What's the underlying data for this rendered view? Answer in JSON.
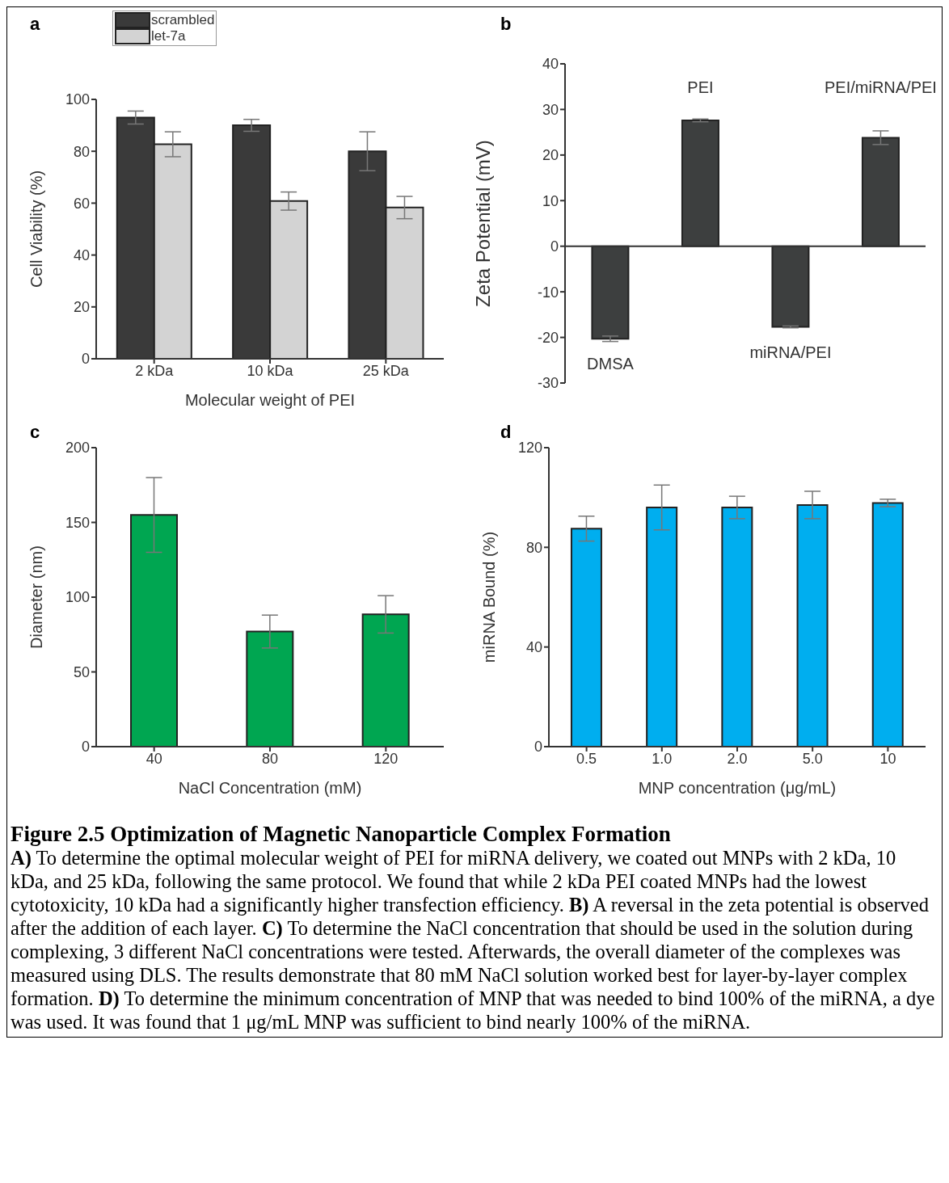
{
  "chart_data": [
    {
      "type": "bar",
      "title": "a",
      "categories": [
        "2 kDa",
        "10 kDa",
        "25 kDa"
      ],
      "xlabel": "Molecular weight of PEI",
      "ylabel": "Cell Viability (%)",
      "ylim": [
        0,
        100
      ],
      "yticks": [
        0,
        20,
        40,
        60,
        80,
        100
      ],
      "legend": "top left",
      "series": [
        {
          "name": "scrambled",
          "color": "#3a3a3a",
          "values": [
            93,
            90,
            80
          ],
          "errors": [
            2.5,
            2.3,
            7.5
          ]
        },
        {
          "name": "let-7a",
          "color": "#d3d3d3",
          "values": [
            82.7,
            60.8,
            58.3
          ],
          "errors": [
            4.8,
            3.5,
            4.3
          ]
        }
      ]
    },
    {
      "type": "bar",
      "title": "b",
      "categories": [
        "DMSA",
        "PEI",
        "miRNA/PEI",
        "PEI/miRNA/PEI"
      ],
      "ylabel": "Zeta Potential (mV)",
      "ylim": [
        -30,
        40
      ],
      "yticks": [
        -30,
        -20,
        -10,
        0,
        10,
        20,
        30,
        40
      ],
      "tick_labels": "y",
      "color": "#3d3f3f",
      "values": [
        -20.3,
        27.6,
        -17.7,
        23.8
      ],
      "errors": [
        0.6,
        0.3,
        0.2,
        1.5
      ],
      "ref_lines": [
        {
          "axis": "y",
          "value": 0,
          "color": "#333333"
        }
      ]
    },
    {
      "type": "bar",
      "title": "c",
      "categories": [
        "40",
        "80",
        "120"
      ],
      "xlabel": "NaCl Concentration (mM)",
      "ylabel": "Diameter (nm)",
      "ylim": [
        0,
        200
      ],
      "yticks": [
        0,
        50,
        100,
        150,
        200
      ],
      "color": "#00a651",
      "values": [
        155,
        77,
        88.5
      ],
      "errors": [
        25,
        11,
        12.5
      ]
    },
    {
      "type": "bar",
      "title": "d",
      "categories": [
        "0.5",
        "1.0",
        "2.0",
        "5.0",
        "10"
      ],
      "xlabel": "MNP concentration (μg/mL)",
      "ylabel": "miRNA Bound (%)",
      "ylim": [
        0,
        120
      ],
      "yticks": [
        0,
        40,
        80,
        120
      ],
      "color": "#00aeef",
      "values": [
        87.5,
        96,
        96,
        97,
        97.8
      ],
      "errors": [
        5,
        9,
        4.5,
        5.5,
        1.5
      ]
    },
    {
      "type": "other",
      "title": "Figure 2.5 Optimization of Magnetic Nanoparticle Complex Formation",
      "annotations": [
        "A) To determine the optimal molecular weight of PEI for miRNA delivery, we coated out MNPs with 2 kDa, 10 kDa, and 25 kDa, following the same protocol. We found that while 2 kDa PEI coated MNPs had the lowest cytotoxicity, 10 kDa had a significantly higher transfection efficiency.",
        "B) A reversal in the zeta potential is observed after the addition of each layer.",
        "C) To determine the NaCl concentration that should be used in the solution during complexing, 3 different NaCl concentrations were tested. Afterwards, the overall diameter of the complexes was measured using DLS. The results demonstrate that 80 mM NaCl solution worked best for layer-by-layer complex formation.",
        "D) To determine the minimum concentration of MNP that was needed to bind 100% of the miRNA, a dye was used. It was found that 1 μg/mL MNP was sufficient to bind nearly 100% of the miRNA."
      ]
    }
  ]
}
